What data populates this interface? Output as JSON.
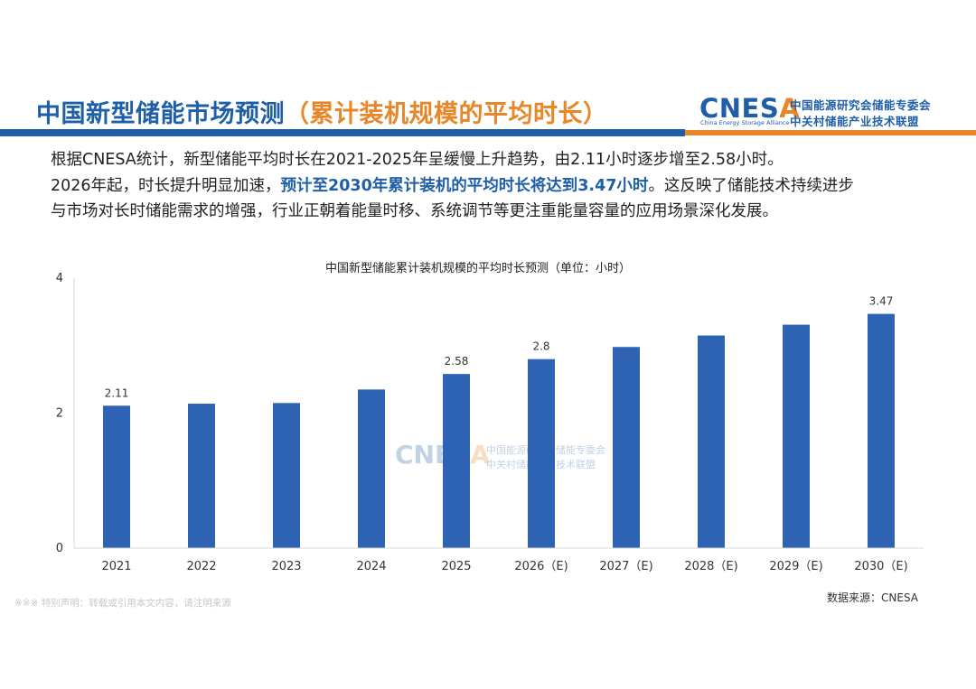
{
  "header": {
    "title_main": "中国新型储能市场预测",
    "title_sub": "（累计装机规模的平均时长）",
    "logo_wordmark": "CNESA",
    "logo_tagline": "China Energy Storage Alliance",
    "logo_org_line1": "中国能源研究会储能专委会",
    "logo_org_line2": "中关村储能产业技术联盟"
  },
  "paragraph": {
    "line1": "根据CNESA统计，新型储能平均时长在2021-2025年呈缓慢上升趋势，由2.11小时逐步增至2.58小时。",
    "line2_start": "2026年起，时长提升明显加速，",
    "line2_highlight": "预计至2030年累计装机的平均时长将达到3.47小时",
    "line2_end": "。这反映了储能技术持续进步",
    "line3": "与市场对长时储能需求的增强，行业正朝着能量时移、系统调节等更注重能量容量的应用场景深化发展。"
  },
  "chart_data": {
    "type": "bar",
    "title": "中国新型储能累计装机规模的平均时长预测（单位：小时）",
    "categories": [
      "2021",
      "2022",
      "2023",
      "2024",
      "2025",
      "2026（E)",
      "2027（E)",
      "2028（E)",
      "2029（E)",
      "2030（E)"
    ],
    "values": [
      2.11,
      2.14,
      2.15,
      2.35,
      2.58,
      2.8,
      2.98,
      3.15,
      3.31,
      3.47
    ],
    "data_labels": [
      "2.11",
      "",
      "",
      "",
      "2.58",
      "2.8",
      "",
      "",
      "",
      "3.47"
    ],
    "ylim": [
      0,
      4
    ],
    "yticks": [
      0,
      2,
      4
    ],
    "bar_color": "#2e63b4",
    "grid": false
  },
  "watermark": {
    "wordmark": "CNESA",
    "line1": "中国能源研究会储能专委会",
    "line2": "中关村储能产业技术联盟"
  },
  "footnote": "※※※ 特别声明：转载或引用本文内容，请注明来源",
  "source": "数据来源：CNESA",
  "colors": {
    "brand_blue": "#1f5fa8",
    "brand_orange": "#e8862a"
  }
}
